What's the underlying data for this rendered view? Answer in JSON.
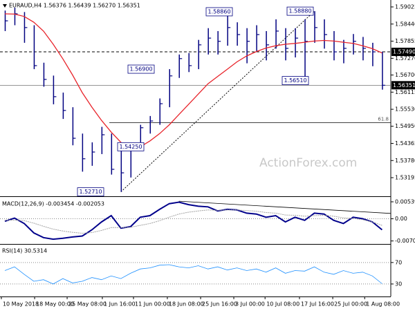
{
  "chart_data": [
    {
      "type": "ohlc",
      "title": "EURAUD,H4  1.56376 1.56439 1.56270 1.56351",
      "color": "#000080",
      "high": [
        1.589,
        1.59,
        1.5885,
        1.584,
        1.5712,
        1.5668,
        1.561,
        1.556,
        1.547,
        1.544,
        1.5493,
        1.547,
        1.542,
        1.543,
        1.55,
        1.553,
        1.559,
        1.569,
        1.574,
        1.5745,
        1.579,
        1.583,
        1.582,
        1.5886,
        1.585,
        1.583,
        1.584,
        1.582,
        1.586,
        1.583,
        1.583,
        1.586,
        1.5888,
        1.586,
        1.582,
        1.579,
        1.581,
        1.58,
        1.578,
        1.575
      ],
      "low": [
        1.582,
        1.584,
        1.578,
        1.569,
        1.563,
        1.557,
        1.552,
        1.543,
        1.534,
        1.536,
        1.54,
        1.533,
        1.5271,
        1.532,
        1.5425,
        1.547,
        1.55,
        1.556,
        1.566,
        1.568,
        1.569,
        1.574,
        1.574,
        1.577,
        1.577,
        1.571,
        1.575,
        1.572,
        1.576,
        1.572,
        1.573,
        1.5651,
        1.578,
        1.576,
        1.572,
        1.571,
        1.574,
        1.572,
        1.57,
        1.562
      ],
      "close": [
        1.5855,
        1.5879,
        1.5832,
        1.5702,
        1.5655,
        1.5596,
        1.5549,
        1.5454,
        1.5384,
        1.5407,
        1.5466,
        1.5348,
        1.5336,
        1.5419,
        1.549,
        1.5513,
        1.5572,
        1.5667,
        1.5726,
        1.5702,
        1.5773,
        1.5796,
        1.5785,
        1.5832,
        1.5808,
        1.5785,
        1.5808,
        1.5773,
        1.582,
        1.5761,
        1.5796,
        1.5785,
        1.5832,
        1.5808,
        1.5749,
        1.5761,
        1.5785,
        1.5761,
        1.5749,
        1.5635
      ],
      "ma": {
        "color": "#e8232a",
        "values": [
          1.5879,
          1.5878,
          1.587,
          1.585,
          1.582,
          1.5775,
          1.5725,
          1.567,
          1.561,
          1.556,
          1.5515,
          1.5475,
          1.544,
          1.542,
          1.5425,
          1.5445,
          1.547,
          1.55,
          1.5535,
          1.557,
          1.5605,
          1.564,
          1.5665,
          1.569,
          1.5715,
          1.5735,
          1.575,
          1.5762,
          1.577,
          1.5775,
          1.5778,
          1.5782,
          1.5786,
          1.5788,
          1.5786,
          1.5782,
          1.5778,
          1.577,
          1.576,
          1.5745
        ]
      },
      "ylim": [
        1.52583,
        1.59261
      ],
      "yticks": [
        1.59025,
        {
          "value": 1.5844,
          "label": "1.58440"
        },
        1.57855,
        {
          "value": 1.5727,
          "label": "1.57270"
        },
        {
          "value": 1.567,
          "label": "1.56700"
        },
        1.56115,
        {
          "value": 1.5553,
          "label": "1.55530"
        },
        {
          "value": 1.5495,
          "label": "1.54950"
        },
        1.54365,
        {
          "value": 1.5378,
          "label": "1.53780"
        },
        1.53195
      ],
      "resistance": {
        "value": 1.5749,
        "label": "1.57490"
      },
      "current": {
        "value": 1.56351,
        "label": "1.56351"
      },
      "fib": {
        "level": 61.8,
        "price": 1.5507
      },
      "swing_labels": [
        {
          "value": 1.5271,
          "label": "1.52710"
        },
        {
          "value": 1.5425,
          "label": "1.54250"
        },
        {
          "value": 1.569,
          "label": "1.56900"
        },
        {
          "value": 1.5886,
          "label": "1.58860"
        },
        {
          "value": 1.5888,
          "label": "1.58880"
        },
        {
          "value": 1.5651,
          "label": "1.56510"
        }
      ],
      "trendline": {
        "values": [
          1.5271,
          1.5888
        ]
      },
      "watermark": "ActionForex.com"
    },
    {
      "type": "line",
      "title": "MACD(12,26,9) -0.003454 -0.002053",
      "series": [
        {
          "color": "#00008b",
          "values": [
            -0.0008,
            0.0002,
            -0.0015,
            -0.0045,
            -0.006,
            -0.0065,
            -0.0062,
            -0.0058,
            -0.0055,
            -0.0035,
            -0.001,
            0.001,
            -0.003,
            -0.0025,
            0.0005,
            0.001,
            0.003,
            0.0048,
            0.0053,
            0.0045,
            0.004,
            0.0038,
            0.0025,
            0.003,
            0.0028,
            0.0018,
            0.0015,
            0.0005,
            0.001,
            -0.001,
            0.0005,
            -0.0005,
            0.0018,
            0.0015,
            -0.0005,
            -0.0015,
            0.0005,
            0.0,
            -0.001,
            -0.0035
          ]
        },
        {
          "color": "#a0a0a0",
          "values": [
            -0.0005,
            -0.0004,
            -0.0006,
            -0.0014,
            -0.0024,
            -0.0033,
            -0.0039,
            -0.0043,
            -0.0046,
            -0.0044,
            -0.0037,
            -0.0028,
            -0.0028,
            -0.0027,
            -0.0021,
            -0.0015,
            -0.0006,
            0.0005,
            0.0015,
            0.0021,
            0.0025,
            0.0028,
            0.0027,
            0.0028,
            0.0028,
            0.0026,
            0.0024,
            0.002,
            0.0018,
            0.0012,
            0.0011,
            0.0008,
            0.001,
            0.0011,
            0.0008,
            0.0003,
            0.0001,
            -0.0003,
            -0.001,
            -0.0021
          ]
        }
      ],
      "ylim": [
        -0.0078,
        0.0065
      ],
      "yticks": [
        0.005398,
        {
          "value": 0,
          "label": "0.00"
        },
        -0.007064
      ],
      "level_lines": [
        1
      ],
      "trendline": {
        "values": [
          0.0056,
          0.0017
        ]
      }
    },
    {
      "type": "line",
      "title": "RSI(14) 30.5314",
      "series": [
        {
          "color": "#1e90ff",
          "values": [
            55,
            62,
            48,
            35,
            38,
            30,
            40,
            32,
            35,
            42,
            38,
            45,
            40,
            50,
            58,
            60,
            65,
            66,
            62,
            60,
            64,
            58,
            62,
            56,
            60,
            55,
            58,
            52,
            60,
            50,
            55,
            54,
            62,
            52,
            48,
            55,
            50,
            52,
            45,
            30.5
          ]
        }
      ],
      "ylim": [
        8,
        102
      ],
      "yticks": [
        70,
        30
      ],
      "level_lines": [
        0,
        1
      ]
    }
  ],
  "x_axis": {
    "xlim": [
      -0.5,
      39.9
    ],
    "xticks": [
      {
        "value": -0.36,
        "label": "10 May 2018"
      },
      {
        "value": 3.08,
        "label": "18 May 00:00"
      },
      {
        "value": 6.44,
        "label": "25 May 08:00"
      },
      {
        "value": 10.08,
        "label": "1 Jun 16:00"
      },
      {
        "value": 13.3,
        "label": "11 Jun 00:00"
      },
      {
        "value": 16.8,
        "label": "18 Jun 08:00"
      },
      {
        "value": 20.24,
        "label": "25 Jun 16:00"
      },
      {
        "value": 23.67,
        "label": "3 Jul 00:00"
      },
      {
        "value": 26.9,
        "label": "10 Jul 08:00"
      },
      {
        "value": 30.46,
        "label": "17 Jul 16:00"
      },
      {
        "value": 33.9,
        "label": "25 Jul 00:00"
      },
      {
        "value": 37.2,
        "label": "1 Aug 08:00"
      }
    ]
  }
}
